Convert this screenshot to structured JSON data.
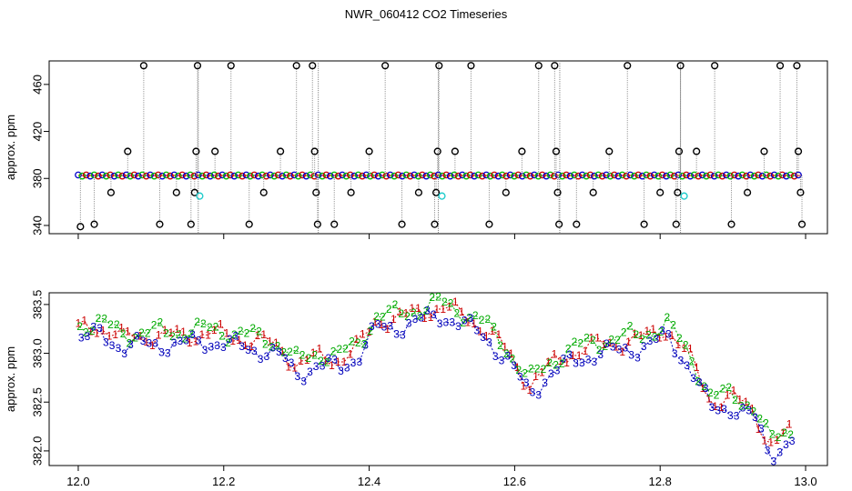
{
  "page": {
    "title": "NWR_060412  CO2 Timeseries"
  },
  "chart_data": [
    {
      "type": "scatter",
      "title": "",
      "xlabel": "",
      "ylabel": "approx. ppm",
      "xlim": [
        11.96,
        13.03
      ],
      "ylim": [
        333,
        480
      ],
      "xticks": [
        "12.0",
        "12.2",
        "12.4",
        "12.6",
        "12.8",
        "13.0"
      ],
      "xtick_values": [
        12.0,
        12.2,
        12.4,
        12.6,
        12.8,
        13.0
      ],
      "yticks": [
        "340",
        "380",
        "420",
        "460"
      ],
      "ytick_values": [
        340,
        380,
        420,
        460
      ],
      "baseline_ppm": 382.5,
      "baseline_series_colors": [
        "#0000cc",
        "#00bb00",
        "#cc0000"
      ],
      "gaps_x": [
        12.165,
        12.33,
        12.495,
        12.662,
        12.828
      ],
      "outlier_color": "#000000",
      "flagged_color": "#22cccc",
      "outliers": [
        {
          "x": 12.003,
          "y": 339
        },
        {
          "x": 12.022,
          "y": 341
        },
        {
          "x": 12.045,
          "y": 368
        },
        {
          "x": 12.068,
          "y": 403
        },
        {
          "x": 12.09,
          "y": 476
        },
        {
          "x": 12.112,
          "y": 341
        },
        {
          "x": 12.135,
          "y": 368
        },
        {
          "x": 12.155,
          "y": 341
        },
        {
          "x": 12.16,
          "y": 368
        },
        {
          "x": 12.162,
          "y": 403
        },
        {
          "x": 12.164,
          "y": 476
        },
        {
          "x": 12.188,
          "y": 403
        },
        {
          "x": 12.21,
          "y": 476
        },
        {
          "x": 12.235,
          "y": 341
        },
        {
          "x": 12.255,
          "y": 368
        },
        {
          "x": 12.278,
          "y": 403
        },
        {
          "x": 12.3,
          "y": 476
        },
        {
          "x": 12.322,
          "y": 476
        },
        {
          "x": 12.325,
          "y": 403
        },
        {
          "x": 12.327,
          "y": 368
        },
        {
          "x": 12.329,
          "y": 341
        },
        {
          "x": 12.352,
          "y": 341
        },
        {
          "x": 12.375,
          "y": 368
        },
        {
          "x": 12.4,
          "y": 403
        },
        {
          "x": 12.422,
          "y": 476
        },
        {
          "x": 12.445,
          "y": 341
        },
        {
          "x": 12.468,
          "y": 368
        },
        {
          "x": 12.49,
          "y": 341
        },
        {
          "x": 12.492,
          "y": 368
        },
        {
          "x": 12.494,
          "y": 403
        },
        {
          "x": 12.496,
          "y": 476
        },
        {
          "x": 12.518,
          "y": 403
        },
        {
          "x": 12.54,
          "y": 476
        },
        {
          "x": 12.565,
          "y": 341
        },
        {
          "x": 12.588,
          "y": 368
        },
        {
          "x": 12.61,
          "y": 403
        },
        {
          "x": 12.633,
          "y": 476
        },
        {
          "x": 12.655,
          "y": 476
        },
        {
          "x": 12.657,
          "y": 403
        },
        {
          "x": 12.659,
          "y": 368
        },
        {
          "x": 12.661,
          "y": 341
        },
        {
          "x": 12.685,
          "y": 341
        },
        {
          "x": 12.708,
          "y": 368
        },
        {
          "x": 12.73,
          "y": 403
        },
        {
          "x": 12.755,
          "y": 476
        },
        {
          "x": 12.778,
          "y": 341
        },
        {
          "x": 12.8,
          "y": 368
        },
        {
          "x": 12.822,
          "y": 341
        },
        {
          "x": 12.824,
          "y": 368
        },
        {
          "x": 12.826,
          "y": 403
        },
        {
          "x": 12.828,
          "y": 476
        },
        {
          "x": 12.85,
          "y": 403
        },
        {
          "x": 12.875,
          "y": 476
        },
        {
          "x": 12.898,
          "y": 341
        },
        {
          "x": 12.92,
          "y": 368
        },
        {
          "x": 12.943,
          "y": 403
        },
        {
          "x": 12.965,
          "y": 476
        },
        {
          "x": 12.988,
          "y": 476
        },
        {
          "x": 12.99,
          "y": 403
        },
        {
          "x": 12.993,
          "y": 368
        },
        {
          "x": 12.995,
          "y": 341
        }
      ],
      "flagged": [
        {
          "x": 12.167,
          "y": 365
        },
        {
          "x": 12.5,
          "y": 365
        },
        {
          "x": 12.833,
          "y": 365
        }
      ]
    },
    {
      "type": "line",
      "title": "",
      "xlabel": "",
      "ylabel": "approx. ppm",
      "xlim": [
        11.96,
        13.03
      ],
      "ylim": [
        381.85,
        383.62
      ],
      "xticks": [
        "12.0",
        "12.2",
        "12.4",
        "12.6",
        "12.8",
        "13.0"
      ],
      "xtick_values": [
        12.0,
        12.2,
        12.4,
        12.6,
        12.8,
        13.0
      ],
      "yticks": [
        "382.0",
        "382.5",
        "383.0",
        "383.5"
      ],
      "ytick_values": [
        382.0,
        382.5,
        383.0,
        383.5
      ],
      "series": [
        {
          "label_char": "1",
          "color": "#cc0000",
          "offset": 0.06
        },
        {
          "label_char": "2",
          "color": "#00aa00",
          "offset": 0.1
        },
        {
          "label_char": "3",
          "color": "#0000bb",
          "offset": -0.03
        }
      ],
      "trend": [
        {
          "x": 12.0,
          "y": 383.18
        },
        {
          "x": 12.03,
          "y": 383.22
        },
        {
          "x": 12.06,
          "y": 383.1
        },
        {
          "x": 12.1,
          "y": 383.12
        },
        {
          "x": 12.14,
          "y": 383.12
        },
        {
          "x": 12.18,
          "y": 383.15
        },
        {
          "x": 12.22,
          "y": 383.1
        },
        {
          "x": 12.26,
          "y": 383.05
        },
        {
          "x": 12.28,
          "y": 382.98
        },
        {
          "x": 12.3,
          "y": 382.82
        },
        {
          "x": 12.33,
          "y": 382.9
        },
        {
          "x": 12.36,
          "y": 382.88
        },
        {
          "x": 12.385,
          "y": 383.0
        },
        {
          "x": 12.41,
          "y": 383.28
        },
        {
          "x": 12.44,
          "y": 383.3
        },
        {
          "x": 12.47,
          "y": 383.36
        },
        {
          "x": 12.5,
          "y": 383.42
        },
        {
          "x": 12.53,
          "y": 383.32
        },
        {
          "x": 12.56,
          "y": 383.2
        },
        {
          "x": 12.59,
          "y": 382.95
        },
        {
          "x": 12.62,
          "y": 382.62
        },
        {
          "x": 12.65,
          "y": 382.82
        },
        {
          "x": 12.68,
          "y": 382.95
        },
        {
          "x": 12.71,
          "y": 383.02
        },
        {
          "x": 12.74,
          "y": 383.05
        },
        {
          "x": 12.78,
          "y": 383.1
        },
        {
          "x": 12.81,
          "y": 383.2
        },
        {
          "x": 12.84,
          "y": 382.9
        },
        {
          "x": 12.87,
          "y": 382.45
        },
        {
          "x": 12.9,
          "y": 382.48
        },
        {
          "x": 12.93,
          "y": 382.35
        },
        {
          "x": 12.95,
          "y": 382.0
        },
        {
          "x": 12.97,
          "y": 382.08
        },
        {
          "x": 12.99,
          "y": 382.18
        }
      ]
    }
  ]
}
